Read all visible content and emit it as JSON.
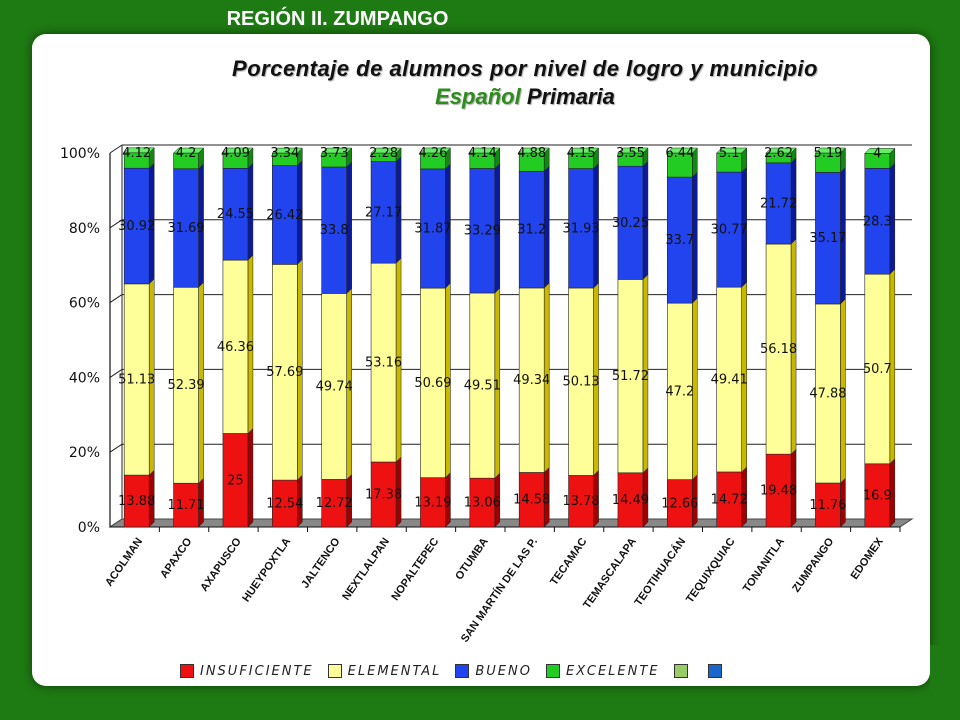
{
  "header": {
    "region": "REGIÓN II. ZUMPANGO"
  },
  "title": {
    "line1": "Porcentaje de alumnos por nivel de logro y municipio",
    "subject": "Español",
    "level": "Primaria"
  },
  "colors": {
    "insuficiente": "#ee1111",
    "elemental": "#ffff99",
    "bueno": "#2244ee",
    "excelente": "#22cc22",
    "extra1": "#99cc66",
    "extra2": "#1a66cc",
    "background": "#1e7a12"
  },
  "legend": [
    {
      "key": "insuficiente",
      "label": "INSUFICIENTE"
    },
    {
      "key": "elemental",
      "label": "ELEMENTAL"
    },
    {
      "key": "bueno",
      "label": "BUENO"
    },
    {
      "key": "excelente",
      "label": "EXCELENTE"
    },
    {
      "key": "extra1",
      "label": ""
    },
    {
      "key": "extra2",
      "label": ""
    }
  ],
  "chart_data": {
    "type": "bar",
    "stacked": true,
    "ylim": [
      0,
      100
    ],
    "ytick_labels": [
      "0%",
      "20%",
      "40%",
      "60%",
      "80%",
      "100%"
    ],
    "ytick_values": [
      0,
      20,
      40,
      60,
      80,
      100
    ],
    "grid": true,
    "legend_position": "bottom",
    "categories": [
      "ACOLMAN",
      "APAXCO",
      "AXAPUSCO",
      "HUEYPOXTLA",
      "JALTENCO",
      "NEXTLALPAN",
      "NOPALTEPEC",
      "OTUMBA",
      "SAN MARTÍN DE LAS P.",
      "TECAMAC",
      "TEMASCALAPA",
      "TEOTIHUACÁN",
      "TEQUIXQUIAC",
      "TONANITLA",
      "ZUMPANGO",
      "EDOMEX"
    ],
    "series": [
      {
        "name": "INSUFICIENTE",
        "values": [
          "13.88",
          "11.71",
          "25",
          "12.54",
          "12.72",
          "17.38",
          "13.19",
          "13.06",
          "14.58",
          "13.78",
          "14.49",
          "12.66",
          "14.72",
          "19.48",
          "11.76",
          "16.9"
        ]
      },
      {
        "name": "ELEMENTAL",
        "values": [
          "51.13",
          "52.39",
          "46.36",
          "57.69",
          "49.74",
          "53.16",
          "50.69",
          "49.51",
          "49.34",
          "50.13",
          "51.72",
          "47.2",
          "49.41",
          "56.18",
          "47.88",
          "50.7"
        ]
      },
      {
        "name": "BUENO",
        "values": [
          "30.92",
          "31.69",
          "24.55",
          "26.42",
          "33.8",
          "27.17",
          "31.87",
          "33.29",
          "31.2",
          "31.93",
          "30.25",
          "33.7",
          "30.77",
          "21.72",
          "35.17",
          "28.3"
        ]
      },
      {
        "name": "EXCELENTE",
        "values": [
          "4.12",
          "4.2",
          "4.09",
          "3.34",
          "3.73",
          "2.28",
          "4.26",
          "4.14",
          "4.88",
          "4.15",
          "3.55",
          "6.44",
          "5.1",
          "2.62",
          "5.19",
          "4"
        ]
      }
    ]
  }
}
